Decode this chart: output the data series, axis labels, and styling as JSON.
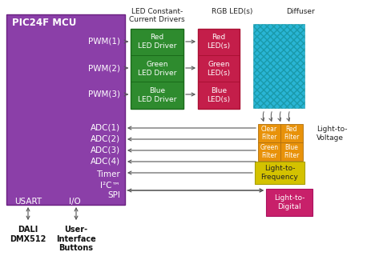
{
  "mcu_color": "#8B3FA8",
  "mcu_label": "PIC24F MCU",
  "led_driver_color": "#2E8B2E",
  "rgb_led_color": "#C41E4A",
  "diffuser_color": "#29B5D5",
  "filter_color": "#E8920A",
  "ltf_color": "#D4C200",
  "ltd_color": "#C8206A",
  "bg_color": "#FFFFFF",
  "arrow_color": "#555555",
  "pwm_labels": [
    "PWM(1)",
    "PWM(2)",
    "PWM(3)"
  ],
  "adc_labels": [
    "ADC(1)",
    "ADC(2)",
    "ADC(3)",
    "ADC(4)"
  ],
  "driver_labels": [
    "Red\nLED Driver",
    "Green\nLED Driver",
    "Blue\nLED Driver"
  ],
  "rgb_labels": [
    "Red\nLED(s)",
    "Green\nLED(s)",
    "Blue\nLED(s)"
  ],
  "header_led": "LED Constant-\nCurrent Drivers",
  "header_rgb": "RGB LED(s)",
  "header_diff": "Diffuser",
  "label_ltv": "Light-to-\nVoltage",
  "label_ltf": "Light-to-\nFrequency",
  "label_ltd": "Light-to-\nDigital",
  "label_usart": "USART",
  "label_io": "I/O",
  "label_i2c": "I²C™",
  "label_spi": "SPI",
  "label_timer": "Timer",
  "label_dali": "DALI\nDMX512",
  "label_uib": "User-\nInterface\nButtons",
  "filt_labels": [
    [
      "Clear\nFilter",
      "Red\nFilter"
    ],
    [
      "Green\nFilter",
      "Blue\nFilter"
    ]
  ]
}
